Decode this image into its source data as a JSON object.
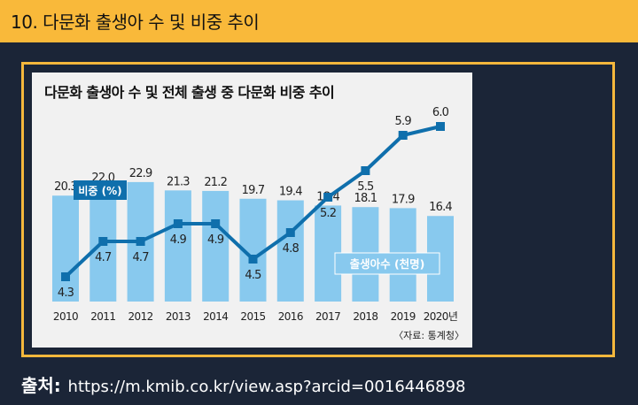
{
  "header": {
    "title": "10. 다문화 출생아 수 및 비중 추이"
  },
  "footer": {
    "label": "출처:",
    "url": "https://m.kmib.co.kr/view.asp?arcid=0016446898"
  },
  "colors": {
    "header_bg": "#f9b93a",
    "page_bg": "#1b2537",
    "frame": "#f4b73c",
    "bar": "#88c9ee",
    "line": "#0f6fac"
  },
  "chart_data": {
    "type": "bar+line",
    "title": "다문화 출생아 수 및 전체 출생 중 다문화 비중 추이",
    "categories": [
      "2010",
      "2011",
      "2012",
      "2013",
      "2014",
      "2015",
      "2016",
      "2017",
      "2018",
      "2019",
      "2020년"
    ],
    "series": [
      {
        "name": "출생아수 (천명)",
        "type": "bar",
        "values": [
          20.3,
          22.0,
          22.9,
          21.3,
          21.2,
          19.7,
          19.4,
          18.4,
          18.1,
          17.9,
          16.4
        ],
        "labels": [
          "20.3",
          "22.0",
          "22.9",
          "21.3",
          "21.2",
          "19.7",
          "19.4",
          "18.4",
          "18.1",
          "17.9",
          "16.4"
        ]
      },
      {
        "name": "비중 (%)",
        "type": "line",
        "values": [
          4.3,
          4.7,
          4.7,
          4.9,
          4.9,
          4.5,
          4.8,
          5.2,
          5.5,
          5.9,
          6.0
        ],
        "labels": [
          "4.3",
          "4.7",
          "4.7",
          "4.9",
          "4.9",
          "4.5",
          "4.8",
          "5.2",
          "5.5",
          "5.9",
          "6.0"
        ]
      }
    ],
    "source": "〈자료: 통계청〉",
    "legend": [
      "비중 (%)",
      "출생아수 (천명)"
    ]
  }
}
